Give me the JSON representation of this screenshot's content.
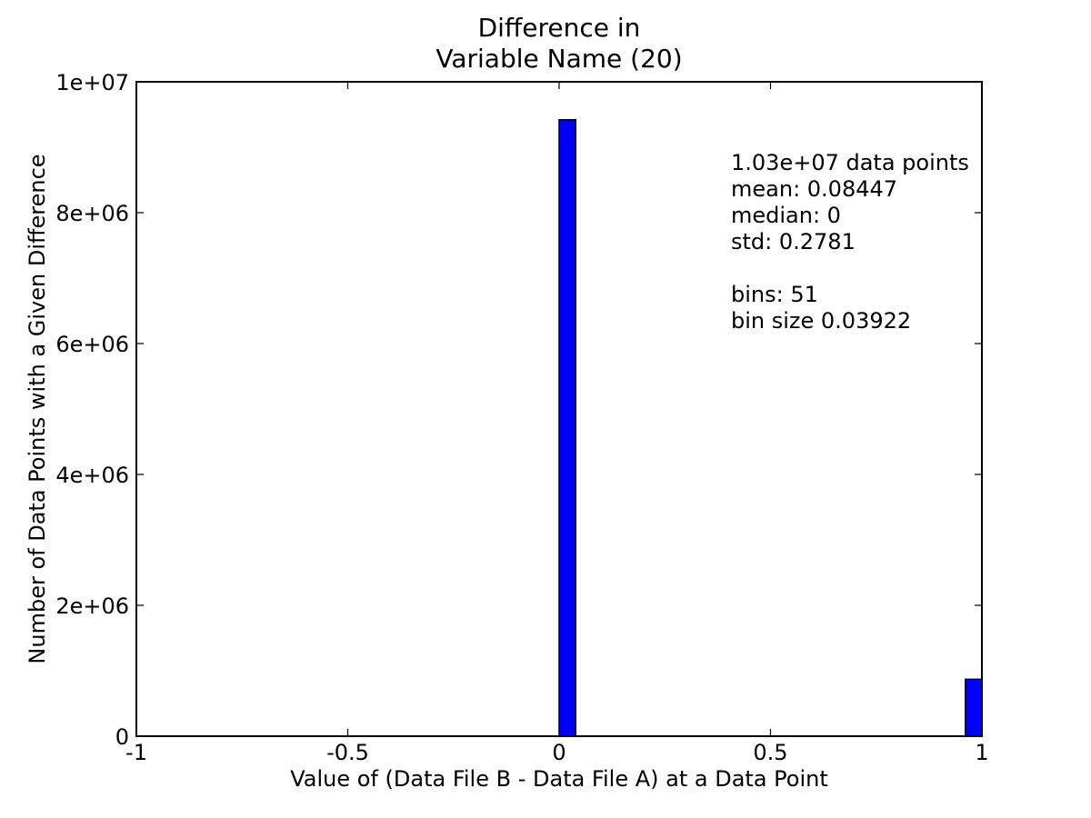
{
  "chart_data": {
    "type": "bar",
    "title": [
      "Difference in",
      "Variable Name (20)"
    ],
    "xlabel": "Value of (Data File B - Data File A) at a Data Point",
    "ylabel": "Number of Data Points with a Given Difference",
    "xlim": [
      -1,
      1
    ],
    "ylim": [
      0,
      10000000
    ],
    "grid": false,
    "bar_color": "#0000ff",
    "bin_width": 0.03922,
    "bars": [
      {
        "x0": 0.0,
        "x1": 0.03922,
        "value": 9420000
      },
      {
        "x0": 0.96078,
        "x1": 1.0,
        "value": 870000
      }
    ],
    "xticks": [
      {
        "value": -1,
        "label": "-1"
      },
      {
        "value": -0.5,
        "label": "-0.5"
      },
      {
        "value": 0,
        "label": "0"
      },
      {
        "value": 0.5,
        "label": "0.5"
      },
      {
        "value": 1,
        "label": "1"
      }
    ],
    "yticks": [
      {
        "value": 0,
        "label": "0"
      },
      {
        "value": 2000000,
        "label": "2e+06"
      },
      {
        "value": 4000000,
        "label": "4e+06"
      },
      {
        "value": 6000000,
        "label": "6e+06"
      },
      {
        "value": 8000000,
        "label": "8e+06"
      },
      {
        "value": 10000000,
        "label": "1e+07"
      }
    ],
    "annotations": [
      "1.03e+07 data points",
      "mean: 0.08447",
      "median: 0",
      "std: 0.2781",
      "",
      "bins: 51",
      "bin size 0.03922"
    ]
  }
}
